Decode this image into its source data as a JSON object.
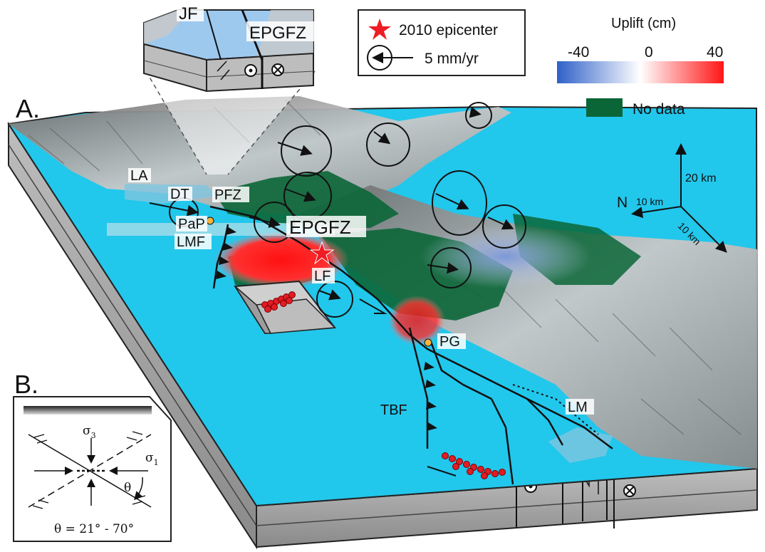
{
  "panel_a": {
    "letter": "A.",
    "inset_labels": {
      "jf": "JF",
      "epgfz": "EPGFZ"
    },
    "place_labels": {
      "la": "LA",
      "dt": "DT",
      "pfz": "PFZ",
      "pap": "PaP",
      "lmf": "LMF",
      "epgfz": "EPGFZ",
      "lf": "LF",
      "pg": "PG",
      "tbf": "TBF",
      "lm": "LM"
    },
    "scale": {
      "north": "N",
      "vertical": "20 km",
      "north_length": "10 km",
      "east_length": "10 km"
    }
  },
  "legend": {
    "epicenter": "2010 epicenter",
    "velocity": "5 mm/yr",
    "uplift_title": "Uplift (cm)",
    "uplift_min": "-40",
    "uplift_mid": "0",
    "uplift_max": "40",
    "no_data": "No data",
    "colors": {
      "uplift_neg": "#2e60c8",
      "uplift_pos": "#ff1515",
      "no_data": "#0b6637",
      "water": "#22c7ec",
      "epicenter": "#ee1c24"
    }
  },
  "panel_b": {
    "letter": "B.",
    "sigma3": "σ",
    "sigma3_sub": "3",
    "sigma1": "σ",
    "sigma1_sub": "1",
    "theta": "θ",
    "theta_range": "θ = 21° - 70°"
  }
}
